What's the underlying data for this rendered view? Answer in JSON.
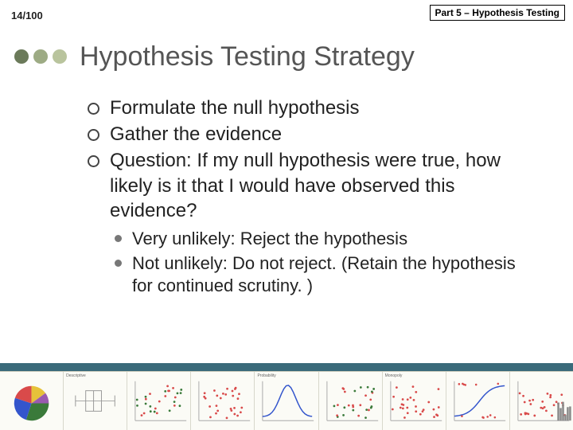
{
  "page_number": "14/100",
  "part_label": "Part 5 – Hypothesis Testing",
  "title": "Hypothesis Testing Strategy",
  "decorative_dots": [
    "#6b7a5a",
    "#9dab84",
    "#b9c49d"
  ],
  "bullets_level1": [
    "Formulate the null hypothesis",
    "Gather the evidence",
    "Question:  If my null hypothesis were true, how likely is it that I would have observed this evidence?"
  ],
  "bullets_level2": [
    "Very unlikely:  Reject the hypothesis",
    "Not unlikely: Do not reject. (Retain the hypothesis for continued scrutiny. )"
  ],
  "band_color": "#3a6a7a",
  "thumb_bg": "#fbfbf6",
  "thumbnails": [
    {
      "kind": "pie",
      "colors": [
        "#3a7a3a",
        "#3355cc",
        "#d94a4a",
        "#e6c23a",
        "#9a5ab0"
      ],
      "title": ""
    },
    {
      "kind": "box",
      "color": "#999999",
      "title": "Descriptive"
    },
    {
      "kind": "scatter2",
      "colors": [
        "#d94a4a",
        "#3a7a3a"
      ],
      "title": ""
    },
    {
      "kind": "scatter",
      "color": "#d94a4a",
      "title": ""
    },
    {
      "kind": "curve",
      "color": "#3355cc",
      "title": "Probability"
    },
    {
      "kind": "scatter2",
      "colors": [
        "#d94a4a",
        "#3a7a3a"
      ],
      "title": ""
    },
    {
      "kind": "scatter",
      "color": "#d94a4a",
      "title": "Monopoly"
    },
    {
      "kind": "logistic",
      "color": "#3355cc",
      "title": ""
    },
    {
      "kind": "scatterhist",
      "color": "#d94a4a",
      "hist": "#888888",
      "title": ""
    }
  ]
}
